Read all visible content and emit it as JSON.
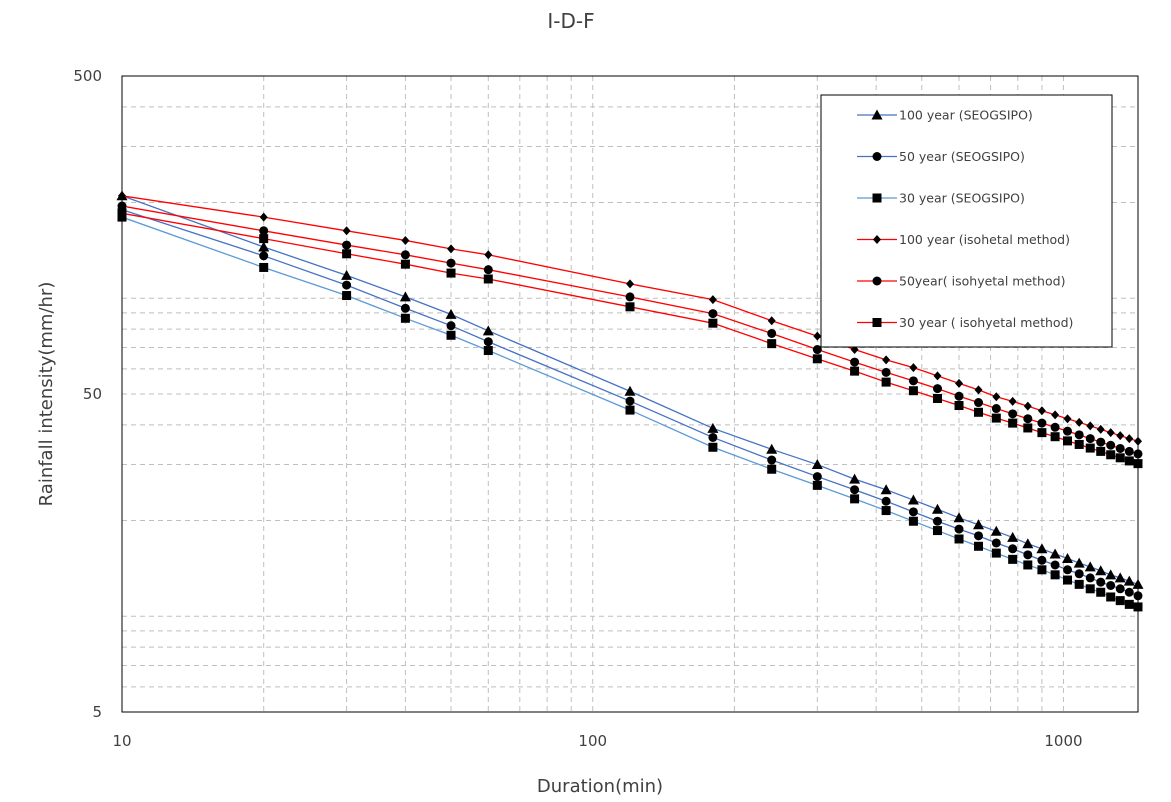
{
  "chart_data": {
    "type": "line",
    "title": "I-D-F",
    "xlabel": "Duration(min)",
    "ylabel": "Rainfall intensity(mm/hr)",
    "xscale": "log",
    "yscale": "log",
    "xlim": [
      10,
      1440
    ],
    "ylim": [
      5,
      500
    ],
    "xticks": [
      {
        "value": 10,
        "label": "10"
      },
      {
        "value": 100,
        "label": "100"
      },
      {
        "value": 1000,
        "label": "1000"
      }
    ],
    "yticks": [
      {
        "value": 5,
        "label": "5"
      },
      {
        "value": 50,
        "label": "50"
      },
      {
        "value": 500,
        "label": "500"
      }
    ],
    "grid": true,
    "legend_position": "top-right",
    "series": [
      {
        "name": "100 year (SEOGSIPO)",
        "color": "#4472C4",
        "marker": "triangle",
        "x": [
          10,
          20,
          30,
          40,
          50,
          60,
          120,
          180,
          240,
          300,
          360,
          420,
          480,
          540,
          600,
          660,
          720,
          780,
          840,
          900,
          960,
          1020,
          1080,
          1140,
          1200,
          1260,
          1320,
          1380,
          1440
        ],
        "y": [
          210,
          145,
          118,
          101,
          89,
          79,
          51,
          39,
          33.5,
          30,
          27,
          25,
          23.2,
          21.7,
          20.4,
          19.4,
          18.5,
          17.7,
          16.9,
          16.3,
          15.7,
          15.2,
          14.7,
          14.3,
          13.9,
          13.5,
          13.2,
          12.9,
          12.6
        ]
      },
      {
        "name": "50 year (SEOGSIPO)",
        "color": "#4472C4",
        "marker": "circle",
        "x": [
          10,
          20,
          30,
          40,
          50,
          60,
          120,
          180,
          240,
          300,
          360,
          420,
          480,
          540,
          600,
          660,
          720,
          780,
          840,
          900,
          960,
          1020,
          1080,
          1140,
          1200,
          1260,
          1320,
          1380,
          1440
        ],
        "y": [
          190,
          136,
          110,
          93,
          82,
          73,
          47.5,
          36.5,
          31,
          27.5,
          25,
          23,
          21.3,
          19.9,
          18.8,
          17.9,
          17,
          16.3,
          15.6,
          15,
          14.5,
          14,
          13.6,
          13.2,
          12.8,
          12.5,
          12.2,
          11.9,
          11.6
        ]
      },
      {
        "name": "30 year (SEOGSIPO)",
        "color": "#5B9BD5",
        "marker": "square",
        "x": [
          10,
          20,
          30,
          40,
          50,
          60,
          120,
          180,
          240,
          300,
          360,
          420,
          480,
          540,
          600,
          660,
          720,
          780,
          840,
          900,
          960,
          1020,
          1080,
          1140,
          1200,
          1260,
          1320,
          1380,
          1440
        ],
        "y": [
          180,
          125,
          102,
          86.5,
          76.5,
          68.5,
          44.5,
          34,
          29,
          25.8,
          23.4,
          21.5,
          19.9,
          18.6,
          17.5,
          16.6,
          15.8,
          15.1,
          14.5,
          14,
          13.5,
          13,
          12.6,
          12.2,
          11.9,
          11.5,
          11.2,
          10.9,
          10.7
        ]
      },
      {
        "name": "100 year (isohetal method)",
        "color": "#FF0000",
        "marker": "diamond",
        "x": [
          10,
          20,
          30,
          40,
          50,
          60,
          120,
          180,
          240,
          300,
          360,
          420,
          480,
          540,
          600,
          660,
          720,
          780,
          840,
          900,
          960,
          1020,
          1080,
          1140,
          1200,
          1260,
          1320,
          1380,
          1440
        ],
        "y": [
          210,
          180,
          163,
          152,
          143,
          137,
          111,
          99,
          85,
          76,
          69,
          64,
          60.5,
          57,
          54,
          51.5,
          49,
          47.4,
          45.8,
          44.3,
          43,
          41.8,
          40.7,
          39.7,
          38.7,
          37.8,
          37,
          36.2,
          35.5
        ]
      },
      {
        "name": "50year( isohyetal method)",
        "color": "#FF0000",
        "marker": "circle",
        "x": [
          10,
          20,
          30,
          40,
          50,
          60,
          120,
          180,
          240,
          300,
          360,
          420,
          480,
          540,
          600,
          660,
          720,
          780,
          840,
          900,
          960,
          1020,
          1080,
          1140,
          1200,
          1260,
          1320,
          1380,
          1440
        ],
        "y": [
          195,
          163,
          147,
          137,
          129,
          123,
          101,
          89.5,
          77.5,
          69,
          63,
          58.5,
          55,
          52,
          49.2,
          47,
          45,
          43.3,
          41.8,
          40.5,
          39.3,
          38.2,
          37.2,
          36.2,
          35.3,
          34.5,
          33.7,
          33,
          32.4
        ]
      },
      {
        "name": "30 year ( isohyetal method)",
        "color": "#FF0000",
        "marker": "square",
        "x": [
          10,
          20,
          30,
          40,
          50,
          60,
          120,
          180,
          240,
          300,
          360,
          420,
          480,
          540,
          600,
          660,
          720,
          780,
          840,
          900,
          960,
          1020,
          1080,
          1140,
          1200,
          1260,
          1320,
          1380,
          1440
        ],
        "y": [
          185,
          154,
          138,
          128,
          120,
          115,
          94,
          83.5,
          72,
          64.5,
          59,
          54.5,
          51.2,
          48.4,
          46,
          43.8,
          42,
          40.5,
          39.1,
          37.8,
          36.7,
          35.6,
          34.7,
          33.8,
          33,
          32.2,
          31.5,
          30.8,
          30.2
        ]
      }
    ]
  }
}
